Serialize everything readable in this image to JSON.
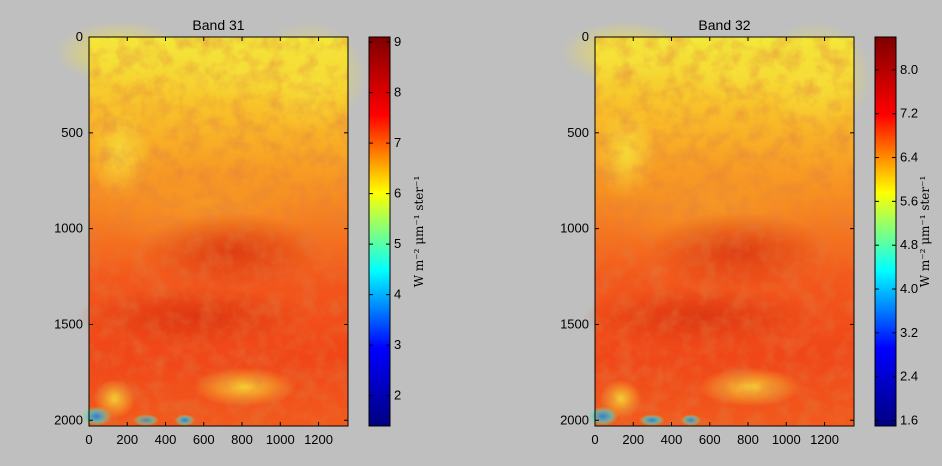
{
  "figure": {
    "background": "#bfbfbf",
    "colormap": "jet",
    "colormap_colors": [
      "#00007f",
      "#0000ff",
      "#00ffff",
      "#ffff00",
      "#ff0000",
      "#7f0000"
    ]
  },
  "chart_data": [
    {
      "type": "heatmap",
      "title": "Band 31",
      "x_ticks": [
        0,
        200,
        400,
        600,
        800,
        1000,
        1200
      ],
      "y_ticks": [
        0,
        500,
        1000,
        1500,
        2000
      ],
      "xlim": [
        0,
        1354
      ],
      "ylim": [
        2030,
        0
      ],
      "y_reversed": true,
      "grid": false,
      "colorbar": {
        "label": "W m⁻² μm⁻¹ ster⁻¹",
        "range": [
          1.4,
          9.1
        ],
        "ticks": [
          2,
          3,
          4,
          5,
          6,
          7,
          8,
          9
        ],
        "tick_labels": [
          "2",
          "3",
          "4",
          "5",
          "6",
          "7",
          "8",
          "9"
        ]
      }
    },
    {
      "type": "heatmap",
      "title": "Band 32",
      "x_ticks": [
        0,
        200,
        400,
        600,
        800,
        1000,
        1200
      ],
      "y_ticks": [
        0,
        500,
        1000,
        1500,
        2000
      ],
      "xlim": [
        0,
        1354
      ],
      "ylim": [
        2030,
        0
      ],
      "y_reversed": true,
      "grid": false,
      "colorbar": {
        "label": "W m⁻² μm⁻¹ ster⁻¹",
        "range": [
          1.5,
          8.6
        ],
        "ticks": [
          1.6,
          2.4,
          3.2,
          4.0,
          4.8,
          5.6,
          6.4,
          7.2,
          8.0
        ],
        "tick_labels": [
          "1.6",
          "2.4",
          "3.2",
          "4.0",
          "4.8",
          "5.6",
          "6.4",
          "7.2",
          "8.0"
        ]
      }
    }
  ]
}
